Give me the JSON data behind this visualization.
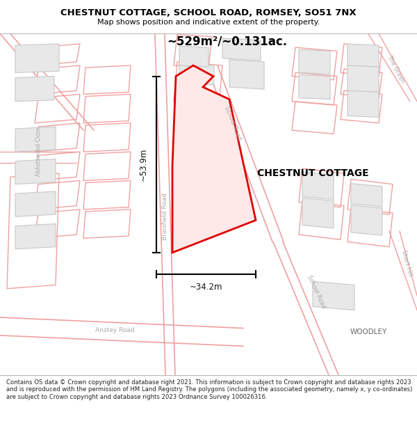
{
  "title_line1": "CHESTNUT COTTAGE, SCHOOL ROAD, ROMSEY, SO51 7NX",
  "title_line2": "Map shows position and indicative extent of the property.",
  "area_label": "~529m²/~0.131ac.",
  "property_label": "CHESTNUT COTTAGE",
  "dim_height": "~53.9m",
  "dim_width": "~34.2m",
  "footer_text": "Contains OS data © Crown copyright and database right 2021. This information is subject to Crown copyright and database rights 2023 and is reproduced with the permission of HM Land Registry. The polygons (including the associated geometry, namely x, y co-ordinates) are subject to Crown copyright and database rights 2023 Ordnance Survey 100026316.",
  "map_bg": "#ffffff",
  "road_color": "#f0a0a0",
  "parcel_color": "#f0a0a0",
  "building_fill": "#e8e8e8",
  "building_stroke": "#c8c8c8",
  "property_fill": "#ffe8e8",
  "property_stroke": "#dd0000",
  "dim_color": "#111111",
  "text_color": "#000000",
  "road_label_color": "#aaaaaa",
  "label_braisfield": "Braisfield Road",
  "label_school_top": "School Road",
  "label_school_bot": "School Road",
  "label_anstey": "Anstey Road",
  "label_abbotswood": "Abbotswood Close",
  "label_the_green": "The Green",
  "label_short_hill": "Short Hill",
  "label_woodley": "WOODLEY"
}
